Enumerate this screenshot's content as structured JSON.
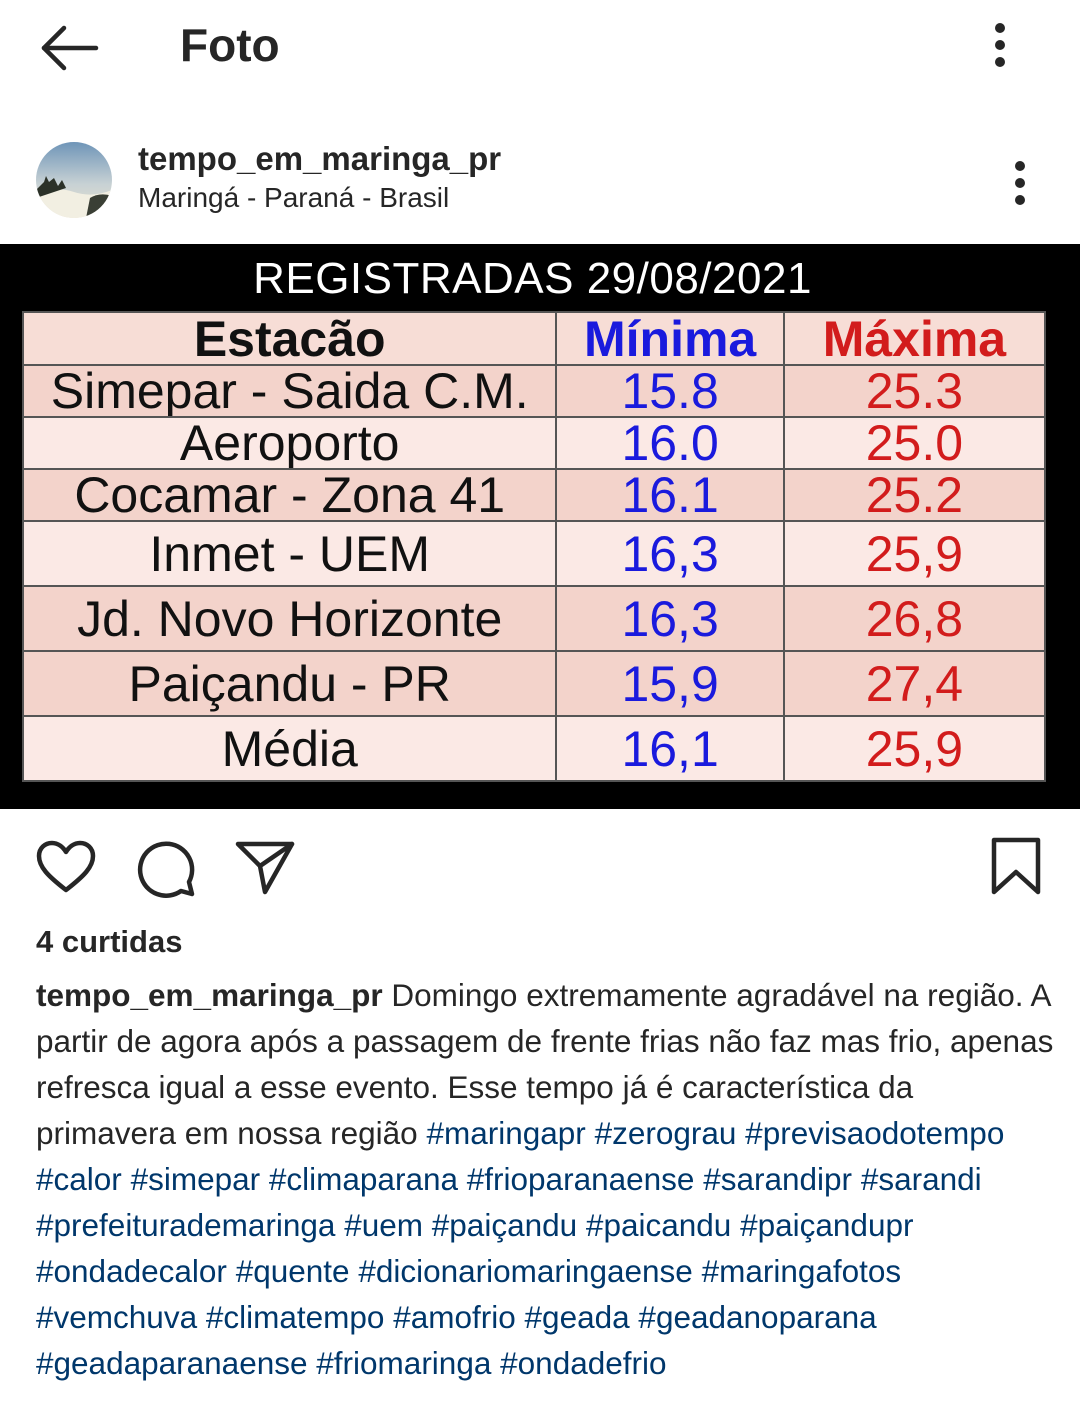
{
  "topbar": {
    "title": "Foto"
  },
  "post": {
    "username": "tempo_em_maringa_pr",
    "location": "Maringá - Paraná - Brasil"
  },
  "image": {
    "title": "REGISTRADAS 29/08/2021",
    "headers": {
      "station": "Estacão",
      "min": "Mínima",
      "max": "Máxima"
    },
    "rows": [
      {
        "station": "Simepar - Saida C.M.",
        "min": "15.8",
        "max": "25.3"
      },
      {
        "station": "Aeroporto",
        "min": "16.0",
        "max": "25.0"
      },
      {
        "station": "Cocamar - Zona 41",
        "min": "16.1",
        "max": "25.2"
      },
      {
        "station": "Inmet - UEM",
        "min": "16,3",
        "max": "25,9"
      },
      {
        "station": "Jd. Novo Horizonte",
        "min": "16,3",
        "max": "26,8"
      },
      {
        "station": "Paiçandu - PR",
        "min": "15,9",
        "max": "27,4"
      },
      {
        "station": "Média",
        "min": "16,1",
        "max": "25,9"
      }
    ]
  },
  "likes": "4 curtidas",
  "caption": {
    "user": "tempo_em_maringa_pr",
    "text": "Domingo extremamente agradável na região. A partir de agora após a passagem de frente frias não faz mas frio, apenas refresca igual a esse evento. Esse tempo já é característica da primavera em nossa região",
    "tags": [
      "#maringapr",
      "#zerograu",
      "#previsaodotempo",
      "#calor",
      "#simepar",
      "#climaparana",
      "#frioparanaense",
      "#sarandipr",
      "#sarandi",
      "#prefeiturademaringa",
      "#uem",
      "#paiçandu",
      "#paicandu",
      "#paiçandupr",
      "#ondadecalor",
      "#quente",
      "#dicionariomaringaense",
      "#maringafotos",
      "#vemchuva",
      "#climatempo",
      "#amofrio",
      "#geada",
      "#geadanoparana",
      "#geadaparanaense",
      "#friomaringa",
      "#ondadefrio"
    ]
  },
  "icons": {
    "back": "arrow-left-icon",
    "more": "more-vertical-icon",
    "like": "heart-icon",
    "comment": "comment-icon",
    "share": "send-icon",
    "save": "bookmark-icon"
  },
  "colors": {
    "link": "#00376b",
    "min": "#1a1add",
    "max": "#d21c1c"
  }
}
